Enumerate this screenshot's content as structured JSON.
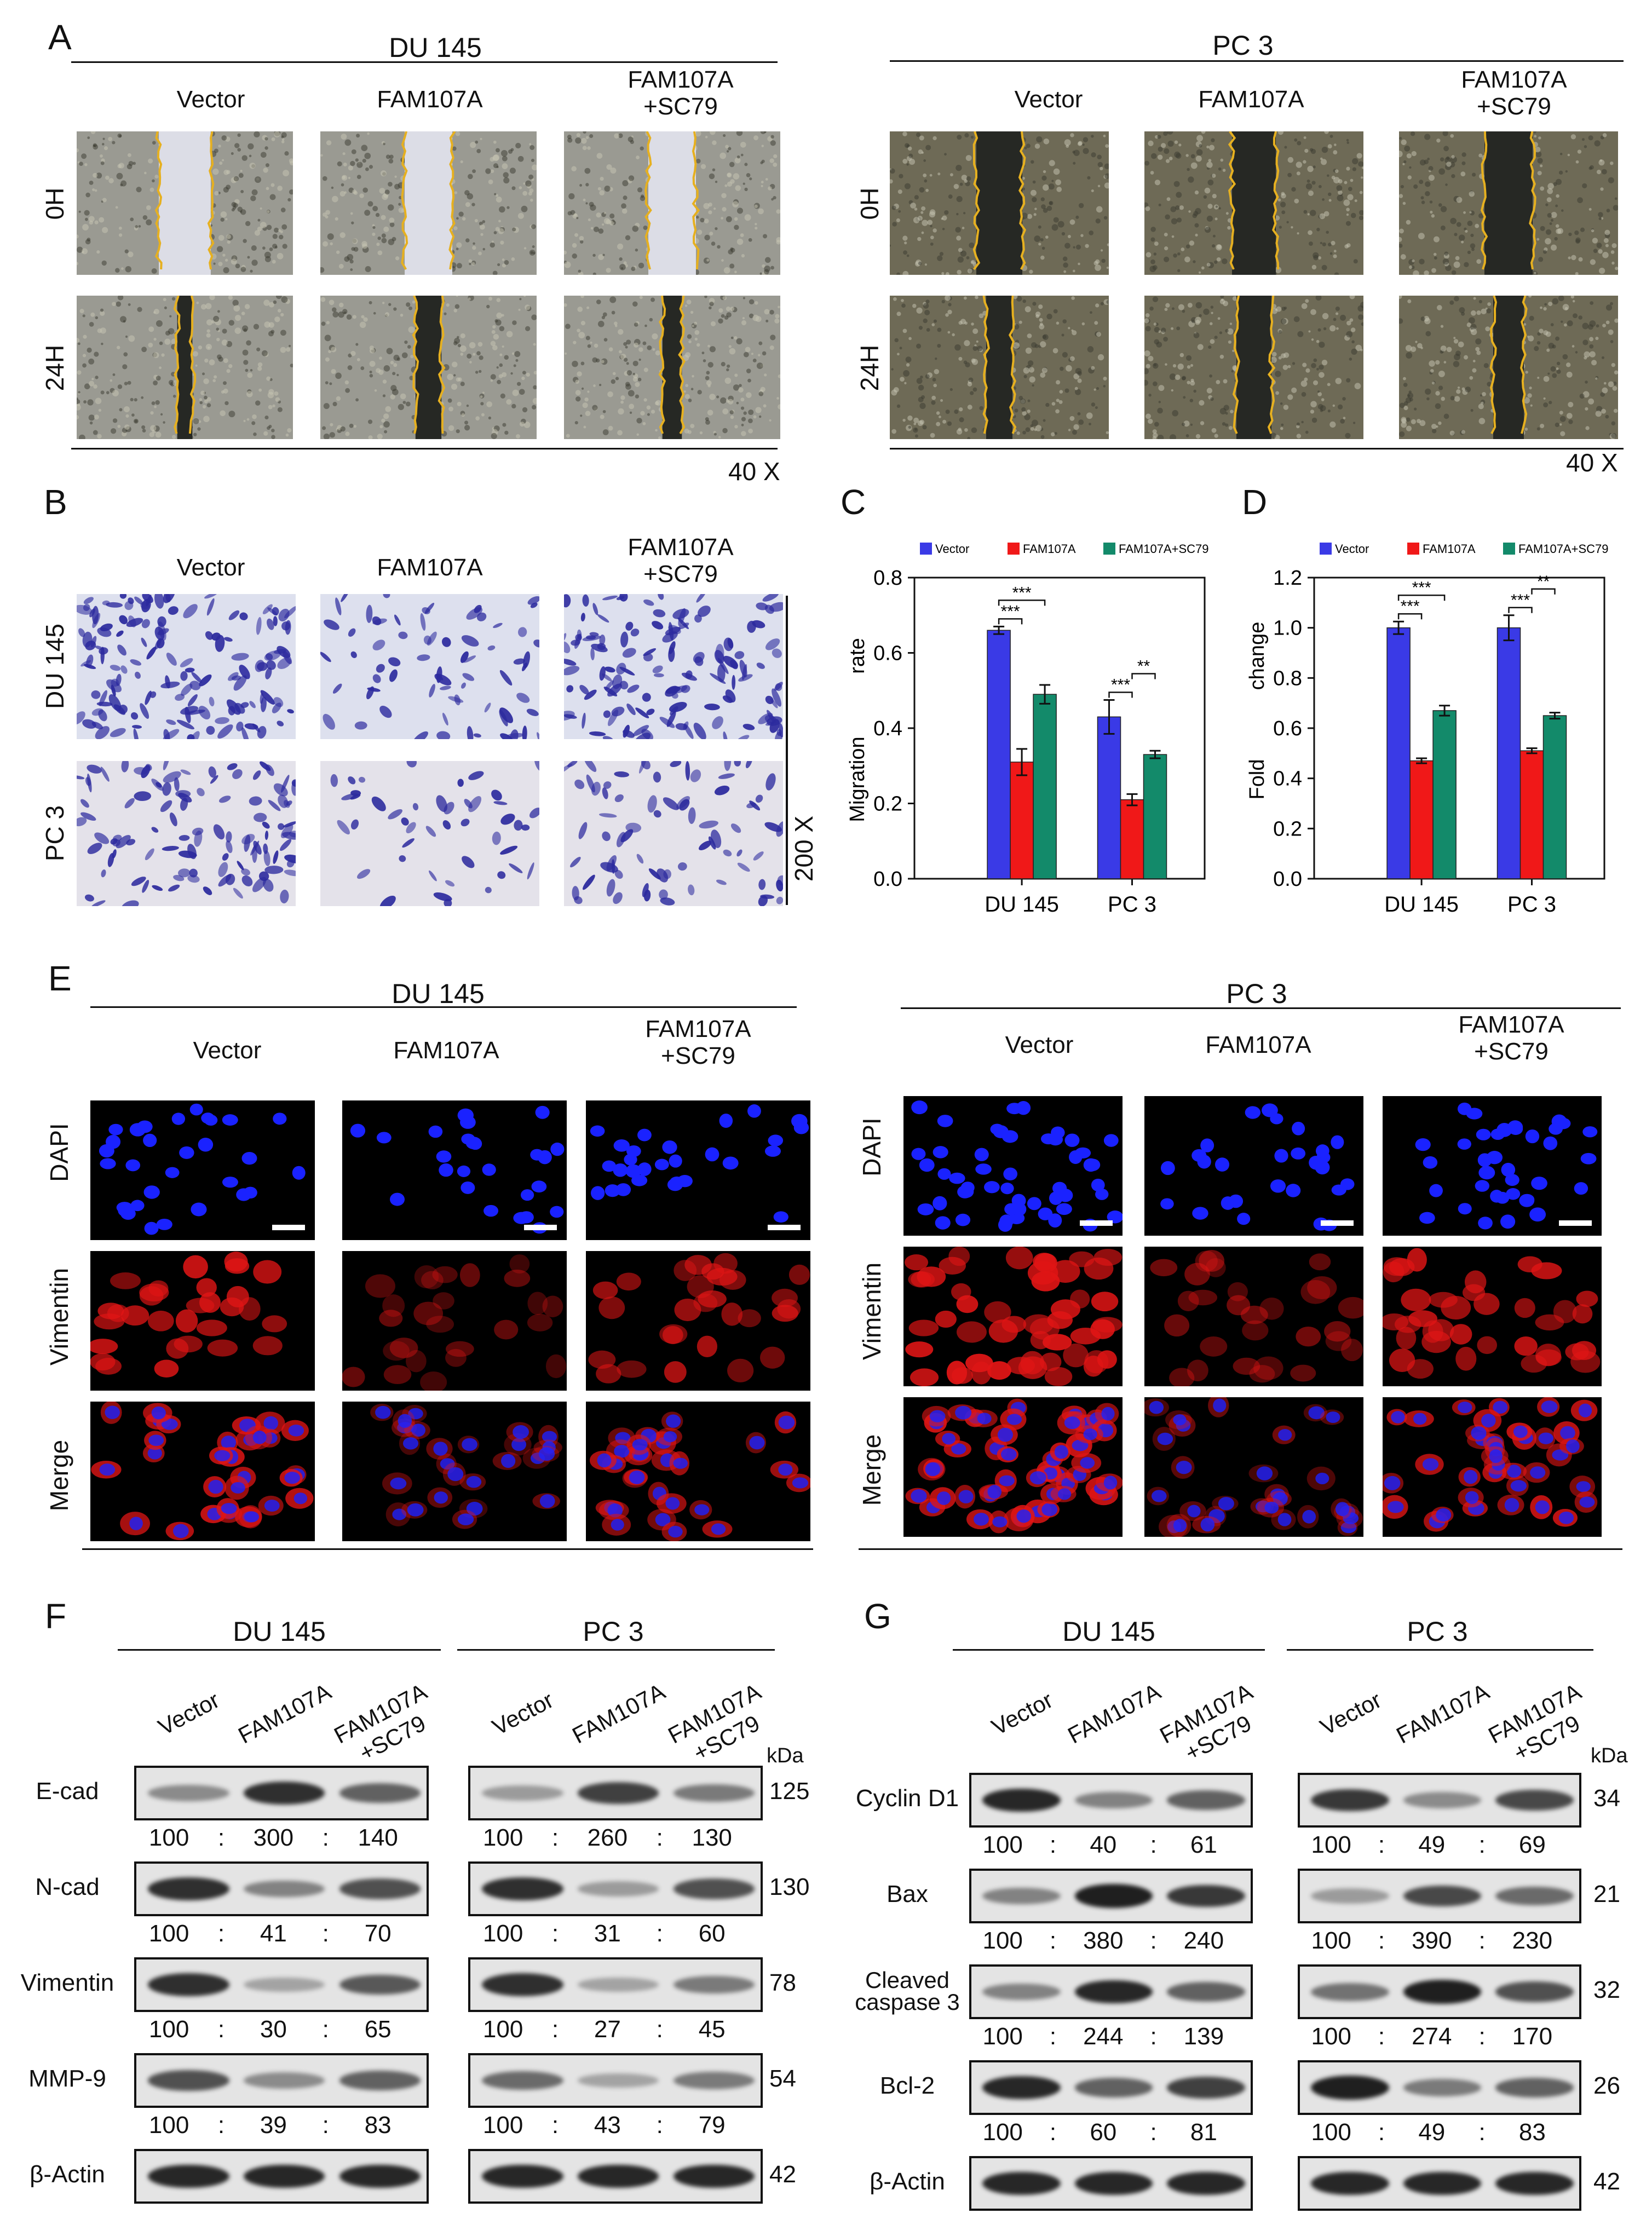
{
  "panels": {
    "A": "A",
    "B": "B",
    "C": "C",
    "D": "D",
    "E": "E",
    "F": "F",
    "G": "G"
  },
  "cells": {
    "du145": "DU 145",
    "pc3": "PC 3"
  },
  "groups": {
    "vector": "Vector",
    "fam": "FAM107A",
    "famsc": "FAM107A\n+SC79",
    "famsc_line1": "FAM107A",
    "famsc_line2": "+SC79"
  },
  "wound": {
    "row0": "0H",
    "row24": "24H",
    "mag": "40 X"
  },
  "transwell": {
    "mag": "200 X"
  },
  "if_rows": {
    "dapi": "DAPI",
    "vim": "Vimentin",
    "merge": "Merge"
  },
  "colors": {
    "vector": "#3a3ae6",
    "fam": "#f01818",
    "famsc": "#138a6a",
    "dapi": "#1a22ff",
    "vim": "#e01515"
  },
  "chart_data": [
    {
      "type": "bar",
      "panel": "C",
      "categories": [
        "DU 145",
        "PC 3"
      ],
      "series": [
        {
          "name": "Vector",
          "values": [
            0.66,
            0.43
          ],
          "errors": [
            0.01,
            0.045
          ]
        },
        {
          "name": "FAM107A",
          "values": [
            0.31,
            0.21
          ],
          "errors": [
            0.035,
            0.015
          ]
        },
        {
          "name": "FAM107A+SC79",
          "values": [
            0.49,
            0.33
          ],
          "errors": [
            0.025,
            0.01
          ]
        }
      ],
      "ylabel_parts": [
        "Migration",
        "rate"
      ],
      "ylim": [
        0,
        0.8
      ],
      "yticks": [
        "0.0",
        "0.2",
        "0.4",
        "0.6",
        "0.8"
      ],
      "significance": [
        {
          "group": 0,
          "pairs": [
            [
              "Vector",
              "FAM107A",
              "***"
            ],
            [
              "Vector",
              "FAM107A+SC79",
              "***"
            ]
          ]
        },
        {
          "group": 1,
          "pairs": [
            [
              "Vector",
              "FAM107A",
              "***"
            ],
            [
              "FAM107A",
              "FAM107A+SC79",
              "**"
            ]
          ]
        }
      ],
      "legend": "top"
    },
    {
      "type": "bar",
      "panel": "D",
      "categories": [
        "DU 145",
        "PC 3"
      ],
      "series": [
        {
          "name": "Vector",
          "values": [
            1.0,
            1.0
          ],
          "errors": [
            0.025,
            0.05
          ]
        },
        {
          "name": "FAM107A",
          "values": [
            0.47,
            0.51
          ],
          "errors": [
            0.01,
            0.01
          ]
        },
        {
          "name": "FAM107A+SC79",
          "values": [
            0.67,
            0.65
          ],
          "errors": [
            0.02,
            0.012
          ]
        }
      ],
      "ylabel_parts": [
        "Fold",
        "change"
      ],
      "ylim": [
        0,
        1.2
      ],
      "yticks": [
        "0.0",
        "0.2",
        "0.4",
        "0.6",
        "0.8",
        "1.0",
        "1.2"
      ],
      "significance": [
        {
          "group": 0,
          "pairs": [
            [
              "Vector",
              "FAM107A",
              "***"
            ],
            [
              "Vector",
              "FAM107A+SC79",
              "***"
            ]
          ]
        },
        {
          "group": 1,
          "pairs": [
            [
              "Vector",
              "FAM107A",
              "***"
            ],
            [
              "FAM107A",
              "FAM107A+SC79",
              "**"
            ]
          ]
        }
      ],
      "legend": "top"
    }
  ],
  "westernF": {
    "kda": "kDa",
    "rows": [
      {
        "label": "E-cad",
        "kda": "125",
        "du": [
          "100",
          "300",
          "140"
        ],
        "pc": [
          "100",
          "260",
          "130"
        ],
        "duI": [
          0.35,
          0.9,
          0.6
        ],
        "pcI": [
          0.25,
          0.8,
          0.45
        ]
      },
      {
        "label": "N-cad",
        "kda": "130",
        "du": [
          "100",
          "41",
          "70"
        ],
        "pc": [
          "100",
          "31",
          "60"
        ],
        "duI": [
          0.9,
          0.4,
          0.7
        ],
        "pcI": [
          0.9,
          0.25,
          0.7
        ]
      },
      {
        "label": "Vimentin",
        "kda": "78",
        "du": [
          "100",
          "30",
          "65"
        ],
        "pc": [
          "100",
          "27",
          "45"
        ],
        "duI": [
          0.9,
          0.2,
          0.65
        ],
        "pcI": [
          0.9,
          0.2,
          0.45
        ]
      },
      {
        "label": "MMP-9",
        "kda": "54",
        "du": [
          "100",
          "39",
          "83"
        ],
        "pc": [
          "100",
          "43",
          "79"
        ],
        "duI": [
          0.7,
          0.35,
          0.6
        ],
        "pcI": [
          0.55,
          0.2,
          0.45
        ]
      },
      {
        "label": "β-Actin",
        "kda": "42",
        "du": [],
        "pc": [],
        "duI": [
          0.95,
          0.95,
          0.95
        ],
        "pcI": [
          0.95,
          0.95,
          0.95
        ]
      }
    ]
  },
  "westernG": {
    "kda": "kDa",
    "rows": [
      {
        "label": "Cyclin D1",
        "kda": "34",
        "du": [
          "100",
          "40",
          "61"
        ],
        "pc": [
          "100",
          "49",
          "69"
        ],
        "duI": [
          0.95,
          0.4,
          0.6
        ],
        "pcI": [
          0.85,
          0.35,
          0.75
        ]
      },
      {
        "label": "Bax",
        "kda": "21",
        "du": [
          "100",
          "380",
          "240"
        ],
        "pc": [
          "100",
          "390",
          "230"
        ],
        "duI": [
          0.4,
          1.0,
          0.85
        ],
        "pcI": [
          0.25,
          0.75,
          0.55
        ]
      },
      {
        "label": "Cleaved\ncaspase 3",
        "label1": "Cleaved",
        "label2": "caspase 3",
        "kda": "32",
        "du": [
          "100",
          "244",
          "139"
        ],
        "pc": [
          "100",
          "274",
          "170"
        ],
        "duI": [
          0.4,
          0.95,
          0.6
        ],
        "pcI": [
          0.5,
          1.0,
          0.7
        ]
      },
      {
        "label": "Bcl-2",
        "kda": "26",
        "du": [
          "100",
          "60",
          "81"
        ],
        "pc": [
          "100",
          "49",
          "83"
        ],
        "duI": [
          0.95,
          0.6,
          0.8
        ],
        "pcI": [
          1.0,
          0.45,
          0.6
        ]
      },
      {
        "label": "β-Actin",
        "kda": "42",
        "du": [],
        "pc": [],
        "duI": [
          0.95,
          0.95,
          0.95
        ],
        "pcI": [
          0.95,
          0.95,
          0.95
        ]
      }
    ]
  }
}
